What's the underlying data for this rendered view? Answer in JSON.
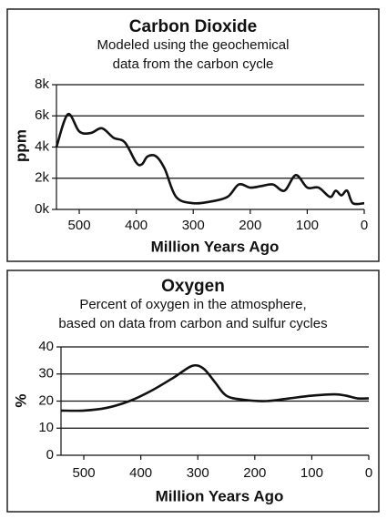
{
  "chart_data": [
    {
      "type": "line",
      "title": "Carbon Dioxide",
      "subtitle": [
        "Modeled using the geochemical",
        "data from the carbon cycle"
      ],
      "ylabel": "ppm",
      "xlabel": "Million Years Ago",
      "x": [
        540,
        520,
        500,
        480,
        460,
        440,
        420,
        400,
        390,
        380,
        365,
        350,
        330,
        300,
        270,
        240,
        220,
        200,
        180,
        160,
        140,
        120,
        100,
        80,
        60,
        50,
        40,
        30,
        20,
        0
      ],
      "values": [
        4000,
        6100,
        5000,
        4900,
        5200,
        4600,
        4300,
        3000,
        2900,
        3400,
        3400,
        2600,
        800,
        400,
        500,
        800,
        1600,
        1400,
        1500,
        1600,
        1200,
        2200,
        1400,
        1400,
        800,
        1200,
        900,
        1200,
        400,
        400
      ],
      "color": "#111111",
      "xlim": [
        540,
        0
      ],
      "xticks": [
        500,
        400,
        300,
        200,
        100,
        0
      ],
      "ylim": [
        0,
        8000
      ],
      "yticks": [
        {
          "value": 0,
          "label": "0k"
        },
        {
          "value": 2000,
          "label": "2k"
        },
        {
          "value": 4000,
          "label": "4k"
        },
        {
          "value": 6000,
          "label": "6k"
        },
        {
          "value": 8000,
          "label": "8k"
        }
      ],
      "grid": true
    },
    {
      "type": "line",
      "title": "Oxygen",
      "subtitle": [
        "Percent of oxygen in the atmosphere,",
        "based on data from carbon and sulfur cycles"
      ],
      "ylabel": "%",
      "xlabel": "Million Years Ago",
      "x": [
        540,
        500,
        460,
        420,
        380,
        340,
        310,
        290,
        270,
        250,
        220,
        180,
        140,
        100,
        60,
        40,
        20,
        0
      ],
      "values": [
        16.5,
        16.5,
        17.5,
        20,
        24,
        29,
        33,
        32,
        27,
        22,
        20.5,
        20,
        21,
        22,
        22.5,
        22,
        21,
        21
      ],
      "color": "#111111",
      "xlim": [
        540,
        0
      ],
      "xticks": [
        500,
        400,
        300,
        200,
        100,
        0
      ],
      "ylim": [
        0,
        40
      ],
      "yticks": [
        0,
        10,
        20,
        30,
        40
      ],
      "grid": true
    }
  ]
}
